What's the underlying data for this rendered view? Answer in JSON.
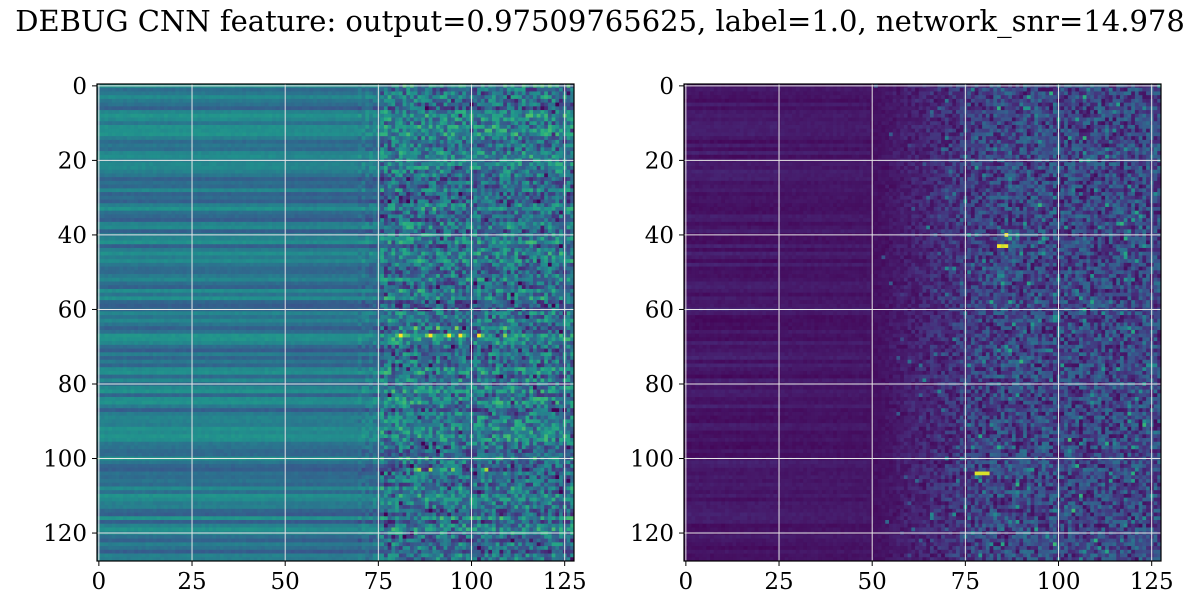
{
  "title": "DEBUG CNN feature: output=0.97509765625, label=1.0, network_snr=14.978",
  "chart_data": [
    {
      "type": "heatmap",
      "colormap": "viridis",
      "grid": true,
      "xlim": [
        0,
        128
      ],
      "ylim": [
        128,
        0
      ],
      "xticks": [
        0,
        25,
        50,
        75,
        100,
        125
      ],
      "yticks": [
        0,
        20,
        40,
        60,
        80,
        100,
        120
      ],
      "x_tick_labels": [
        "0",
        "25",
        "50",
        "75",
        "100",
        "125"
      ],
      "y_tick_labels": [
        "0",
        "20",
        "40",
        "60",
        "80",
        "100",
        "120"
      ],
      "value_range": [
        0,
        1
      ],
      "description": "Left map: smooth horizontal banding for columns 0-75, noisy speckled texture for columns 75-128; mean level ~0.3-0.45, bright spots near rows 60-68 and 103."
    },
    {
      "type": "heatmap",
      "colormap": "viridis",
      "grid": true,
      "xlim": [
        0,
        128
      ],
      "ylim": [
        128,
        0
      ],
      "xticks": [
        0,
        25,
        50,
        75,
        100,
        125
      ],
      "yticks": [
        0,
        20,
        40,
        60,
        80,
        100,
        120
      ],
      "x_tick_labels": [
        "0",
        "25",
        "50",
        "75",
        "100",
        "125"
      ],
      "y_tick_labels": [
        "0",
        "20",
        "40",
        "60",
        "80",
        "100",
        "120"
      ],
      "value_range": [
        0,
        1
      ],
      "description": "Right map: mostly dark purple with faint horizontal bands for columns 0-50, increasingly speckled teal/green noise for columns 50-128; bright yellow spots near rows 40-43 and 104."
    }
  ]
}
